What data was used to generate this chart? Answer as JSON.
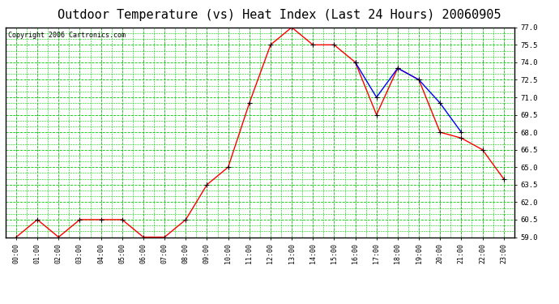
{
  "title": "Outdoor Temperature (vs) Heat Index (Last 24 Hours) 20060905",
  "copyright": "Copyright 2006 Cartronics.com",
  "x_labels": [
    "00:00",
    "01:00",
    "02:00",
    "03:00",
    "04:00",
    "05:00",
    "06:00",
    "07:00",
    "08:00",
    "09:00",
    "10:00",
    "11:00",
    "12:00",
    "13:00",
    "14:00",
    "15:00",
    "16:00",
    "17:00",
    "18:00",
    "19:00",
    "20:00",
    "21:00",
    "22:00",
    "23:00"
  ],
  "temp_data": [
    59.0,
    60.5,
    59.0,
    60.5,
    60.5,
    60.5,
    59.0,
    59.0,
    60.5,
    63.5,
    65.0,
    70.5,
    75.5,
    77.0,
    75.5,
    75.5,
    74.0,
    69.5,
    73.5,
    72.5,
    68.0,
    67.5,
    66.5,
    64.0
  ],
  "heat_data": [
    null,
    null,
    null,
    null,
    null,
    null,
    null,
    null,
    null,
    null,
    null,
    null,
    null,
    null,
    null,
    null,
    74.0,
    71.0,
    73.5,
    72.5,
    70.5,
    68.0,
    null,
    null
  ],
  "temp_color": "#FF0000",
  "heat_color": "#0000FF",
  "bg_color": "#FFFFFF",
  "plot_bg_color": "#FFFFFF",
  "grid_color": "#00CC00",
  "ymin": 59.0,
  "ymax": 77.0,
  "ytick_major_step": 1.5,
  "ytick_minor_step": 0.5,
  "title_fontsize": 11,
  "copyright_fontsize": 6,
  "marker": "+",
  "marker_color": "#000000",
  "marker_size": 5,
  "line_width": 1.0
}
